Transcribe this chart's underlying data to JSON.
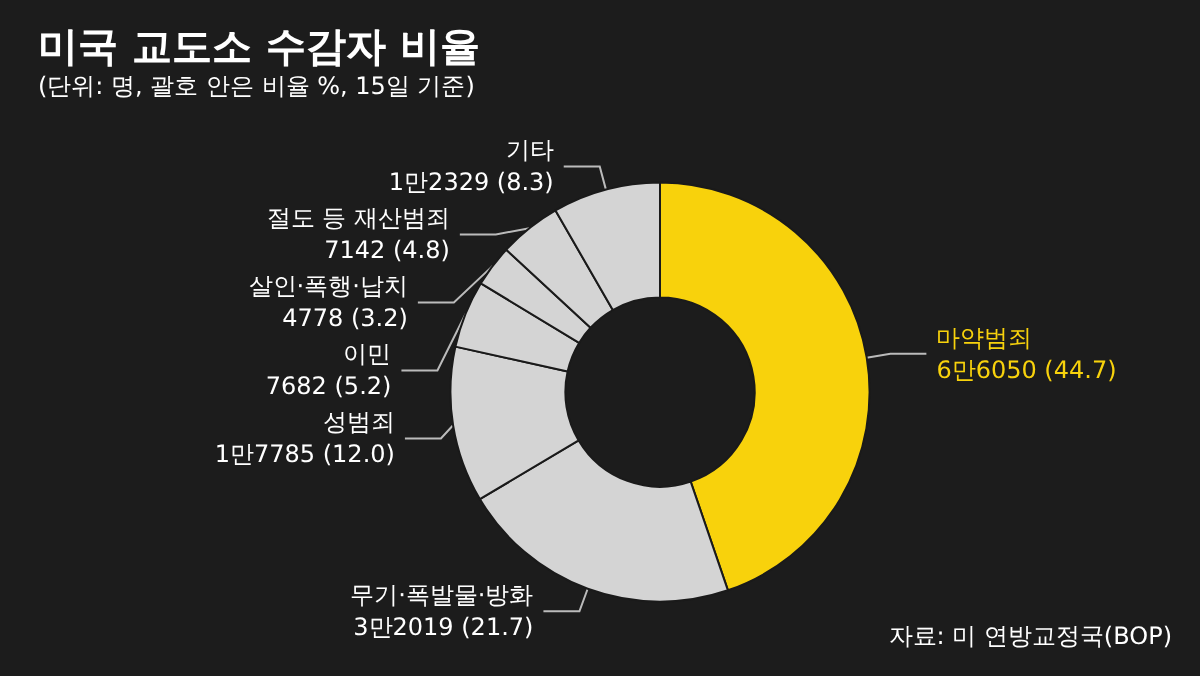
{
  "chart_data": {
    "type": "donut",
    "title": "미국 교도소 수감자 비율",
    "subtitle": "(단위: 명, 괄호 안은 비율 %, 15일 기준)",
    "categories": [
      "마약범죄",
      "무기·폭발물·방화",
      "성범죄",
      "이민",
      "살인·폭행·납치",
      "절도 등 재산범죄",
      "기타"
    ],
    "values": [
      44.7,
      21.7,
      12.0,
      5.2,
      3.2,
      4.8,
      8.3
    ],
    "value_labels": [
      "6만6050 (44.7)",
      "3만2019 (21.7)",
      "1만7785 (12.0)",
      "7682 (5.2)",
      "4778 (3.2)",
      "7142 (4.8)",
      "1만2329 (8.3)"
    ],
    "colors": [
      "#f8d20c",
      "#d4d4d4",
      "#d4d4d4",
      "#d4d4d4",
      "#d4d4d4",
      "#d4d4d4",
      "#d4d4d4"
    ],
    "annotations": [
      "자료: 미 연방교정국(BOP)"
    ],
    "legend": false
  }
}
